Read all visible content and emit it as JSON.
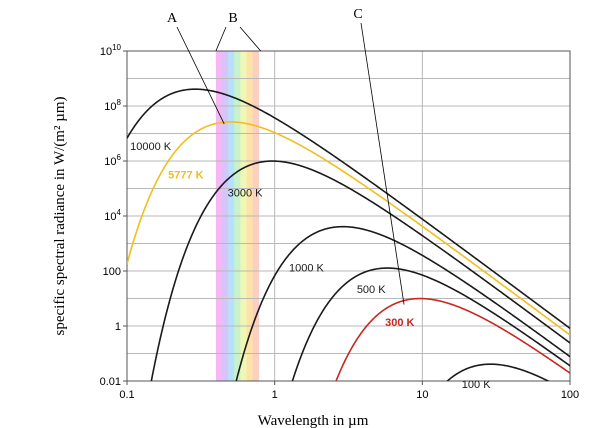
{
  "chart_data": {
    "type": "line",
    "title": "",
    "xlabel": "Wavelength in µm",
    "ylabel": "specific spectral radiance in W/(m² µm)",
    "x_scale": "log",
    "y_scale": "log",
    "xlim": [
      0.1,
      100
    ],
    "ylim": [
      0.01,
      10000000000
    ],
    "x_ticks": [
      {
        "value": 0.1,
        "label": "0.1"
      },
      {
        "value": 1,
        "label": "1"
      },
      {
        "value": 10,
        "label": "10"
      },
      {
        "value": 100,
        "label": "100"
      }
    ],
    "y_ticks": [
      {
        "value": 0.01,
        "label": "0.01",
        "base": "",
        "exp": ""
      },
      {
        "value": 1,
        "label": "1",
        "base": "",
        "exp": ""
      },
      {
        "value": 100,
        "label": "100",
        "base": "",
        "exp": ""
      },
      {
        "value": 10000,
        "label": "",
        "base": "10",
        "exp": "4"
      },
      {
        "value": 1000000,
        "label": "",
        "base": "10",
        "exp": "6"
      },
      {
        "value": 100000000,
        "label": "",
        "base": "10",
        "exp": "8"
      },
      {
        "value": 10000000000,
        "label": "",
        "base": "10",
        "exp": "10"
      }
    ],
    "grid": true,
    "visible_spectrum_band": {
      "from_um": 0.4,
      "to_um": 0.78,
      "colors": [
        "#f7b6f4",
        "#d8c4fb",
        "#b8e0fb",
        "#c8f2cc",
        "#eef7b4",
        "#fde3a8",
        "#fbd0c2"
      ]
    },
    "series": [
      {
        "name": "10000 K",
        "temperature_k": 10000,
        "color": "#1a1a1a",
        "label_color": "#1a1a1a",
        "label_at_um": 0.105
      },
      {
        "name": "5777 K",
        "temperature_k": 5777,
        "color": "#f2be1e",
        "label_color": "#f2be1e",
        "label_at_um": 0.19
      },
      {
        "name": "3000 K",
        "temperature_k": 3000,
        "color": "#1a1a1a",
        "label_color": "#1a1a1a",
        "label_at_um": 0.48
      },
      {
        "name": "1000 K",
        "temperature_k": 1000,
        "color": "#1a1a1a",
        "label_color": "#1a1a1a",
        "label_at_um": 1.25
      },
      {
        "name": "500 K",
        "temperature_k": 500,
        "color": "#1a1a1a",
        "label_color": "#1a1a1a",
        "label_at_um": 3.6
      },
      {
        "name": "300 K",
        "temperature_k": 300,
        "color": "#c8281e",
        "label_color": "#c8281e",
        "label_at_um": 5.6
      },
      {
        "name": "100 K",
        "temperature_k": 100,
        "color": "#1a1a1a",
        "label_color": "#1a1a1a",
        "label_at_um": 18.5
      }
    ],
    "annotations": [
      {
        "label": "A",
        "points_to_um": 0.5,
        "points_to_curve": "5777 K"
      },
      {
        "label": "B",
        "points_to": "visible spectrum edges",
        "left_um": 0.4,
        "right_um": 0.78
      },
      {
        "label": "C",
        "points_to_um": 9.5,
        "points_to_curve": "300 K"
      }
    ]
  }
}
